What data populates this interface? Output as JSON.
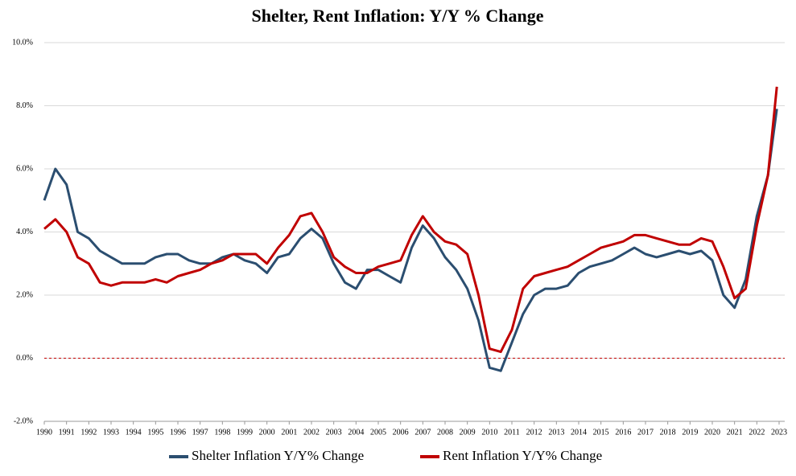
{
  "chart_data": {
    "type": "line",
    "title": "Shelter, Rent Inflation: Y/Y % Change",
    "x": [
      1990,
      1990.5,
      1991,
      1991.5,
      1992,
      1992.5,
      1993,
      1993.5,
      1994,
      1994.5,
      1995,
      1995.5,
      1996,
      1996.5,
      1997,
      1997.5,
      1998,
      1998.5,
      1999,
      1999.5,
      2000,
      2000.5,
      2001,
      2001.5,
      2002,
      2002.5,
      2003,
      2003.5,
      2004,
      2004.5,
      2005,
      2005.5,
      2006,
      2006.5,
      2007,
      2007.5,
      2008,
      2008.5,
      2009,
      2009.5,
      2010,
      2010.5,
      2011,
      2011.5,
      2012,
      2012.5,
      2013,
      2013.5,
      2014,
      2014.5,
      2015,
      2015.5,
      2016,
      2016.5,
      2017,
      2017.5,
      2018,
      2018.5,
      2019,
      2019.5,
      2020,
      2020.5,
      2021,
      2021.5,
      2022,
      2022.5,
      2022.9
    ],
    "series": [
      {
        "name": "Shelter Inflation Y/Y% Change",
        "color": "#2b4e70",
        "values": [
          5.0,
          6.0,
          5.5,
          4.0,
          3.8,
          3.4,
          3.2,
          3.0,
          3.0,
          3.0,
          3.2,
          3.3,
          3.3,
          3.1,
          3.0,
          3.0,
          3.2,
          3.3,
          3.1,
          3.0,
          2.7,
          3.2,
          3.3,
          3.8,
          4.1,
          3.8,
          3.0,
          2.4,
          2.2,
          2.8,
          2.8,
          2.6,
          2.4,
          3.5,
          4.2,
          3.8,
          3.2,
          2.8,
          2.2,
          1.2,
          -0.3,
          -0.4,
          0.5,
          1.4,
          2.0,
          2.2,
          2.2,
          2.3,
          2.7,
          2.9,
          3.0,
          3.1,
          3.3,
          3.5,
          3.3,
          3.2,
          3.3,
          3.4,
          3.3,
          3.4,
          3.1,
          2.0,
          1.6,
          2.5,
          4.5,
          5.8,
          7.9
        ]
      },
      {
        "name": "Rent Inflation Y/Y% Change",
        "color": "#c00000",
        "values": [
          4.1,
          4.4,
          4.0,
          3.2,
          3.0,
          2.4,
          2.3,
          2.4,
          2.4,
          2.4,
          2.5,
          2.4,
          2.6,
          2.7,
          2.8,
          3.0,
          3.1,
          3.3,
          3.3,
          3.3,
          3.0,
          3.5,
          3.9,
          4.5,
          4.6,
          4.0,
          3.2,
          2.9,
          2.7,
          2.7,
          2.9,
          3.0,
          3.1,
          3.9,
          4.5,
          4.0,
          3.7,
          3.6,
          3.3,
          2.0,
          0.3,
          0.2,
          0.9,
          2.2,
          2.6,
          2.7,
          2.8,
          2.9,
          3.1,
          3.3,
          3.5,
          3.6,
          3.7,
          3.9,
          3.9,
          3.8,
          3.7,
          3.6,
          3.6,
          3.8,
          3.7,
          2.9,
          1.9,
          2.2,
          4.2,
          5.8,
          8.6
        ]
      }
    ],
    "xlim": [
      1990,
      2023
    ],
    "xticks": [
      1990,
      1991,
      1992,
      1993,
      1994,
      1995,
      1996,
      1997,
      1998,
      1999,
      2000,
      2001,
      2002,
      2003,
      2004,
      2005,
      2006,
      2007,
      2008,
      2009,
      2010,
      2011,
      2012,
      2013,
      2014,
      2015,
      2016,
      2017,
      2018,
      2019,
      2020,
      2021,
      2022,
      2023
    ],
    "ylim": [
      -2,
      10
    ],
    "yticks": [
      {
        "value": -2,
        "label": "-2.0%"
      },
      {
        "value": 0,
        "label": "0.0%"
      },
      {
        "value": 2,
        "label": "2.0%"
      },
      {
        "value": 4,
        "label": "4.0%"
      },
      {
        "value": 6,
        "label": "6.0%"
      },
      {
        "value": 8,
        "label": "8.0%"
      },
      {
        "value": 10,
        "label": "10.0%"
      }
    ],
    "grid": true,
    "reference_line": {
      "value": 0,
      "color": "#c00000"
    },
    "legend": "bottom"
  }
}
